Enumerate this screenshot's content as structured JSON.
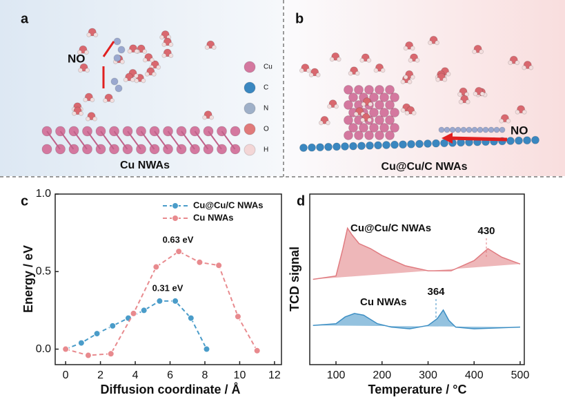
{
  "panels": {
    "a": {
      "label": "a",
      "caption": "Cu NWAs",
      "molecule_label": "NO",
      "atom_legend": [
        "Cu",
        "C",
        "N",
        "O",
        "H"
      ]
    },
    "b": {
      "label": "b",
      "caption": "Cu@Cu/C NWAs",
      "molecule_label": "NO"
    }
  },
  "chart_data": [
    {
      "type": "line",
      "panel_label": "c",
      "x_label": "Diffusion coordinate / Å",
      "y_label": "Energy / eV",
      "xlim": [
        -0.6,
        12.4
      ],
      "ylim": [
        -0.1,
        1.0
      ],
      "xticks": [
        0,
        2,
        4,
        6,
        8,
        10,
        12
      ],
      "yticks": [
        {
          "value": 0,
          "label": "0.0"
        },
        {
          "value": 0.5,
          "label": "0.5"
        },
        {
          "value": 1,
          "label": "1.0"
        }
      ],
      "annotations": [
        "0.63 eV",
        "0.31 eV"
      ],
      "series": [
        {
          "name": "Cu@Cu/C NWAs",
          "color": "#4a9cc9",
          "x": [
            0,
            0.9,
            1.8,
            2.7,
            3.6,
            4.5,
            5.4,
            6.3,
            7.2,
            8.1
          ],
          "values": [
            0,
            0.04,
            0.1,
            0.15,
            0.2,
            0.25,
            0.31,
            0.31,
            0.2,
            0
          ]
        },
        {
          "name": "Cu NWAs",
          "color": "#e88a8e",
          "x": [
            0,
            1.3,
            2.6,
            3.9,
            5.2,
            6.5,
            7.7,
            8.8,
            9.9,
            11
          ],
          "values": [
            0,
            -0.04,
            -0.03,
            0.23,
            0.53,
            0.63,
            0.56,
            0.54,
            0.21,
            -0.01
          ]
        }
      ]
    },
    {
      "type": "area",
      "panel_label": "d",
      "x_label": "Temperature / °C",
      "y_label": "TCD signal",
      "xlim": [
        43,
        509
      ],
      "ylim": [
        0,
        10
      ],
      "xticks": [
        100,
        200,
        300,
        400,
        500
      ],
      "annotations": [
        "430",
        "364"
      ],
      "series": [
        {
          "name": "Cu@Cu/C NWAs",
          "color": "#e07b80",
          "x": [
            50,
            100,
            115,
            125,
            135,
            150,
            175,
            200,
            250,
            300,
            350,
            400,
            430,
            460,
            490,
            500
          ],
          "values": [
            5.0,
            5.2,
            6.8,
            8.0,
            7.6,
            7.1,
            6.8,
            6.4,
            5.8,
            5.5,
            5.5,
            6.1,
            6.8,
            6.3,
            6.0,
            5.9
          ]
        },
        {
          "name": "Cu NWAs",
          "color": "#3d8fc4",
          "x": [
            50,
            100,
            120,
            140,
            160,
            190,
            220,
            260,
            300,
            320,
            333,
            345,
            360,
            400,
            500
          ],
          "values": [
            2.3,
            2.4,
            2.8,
            3.0,
            2.9,
            2.4,
            2.2,
            2.1,
            2.3,
            2.7,
            3.2,
            2.6,
            2.2,
            2.1,
            2.2
          ]
        }
      ]
    }
  ]
}
